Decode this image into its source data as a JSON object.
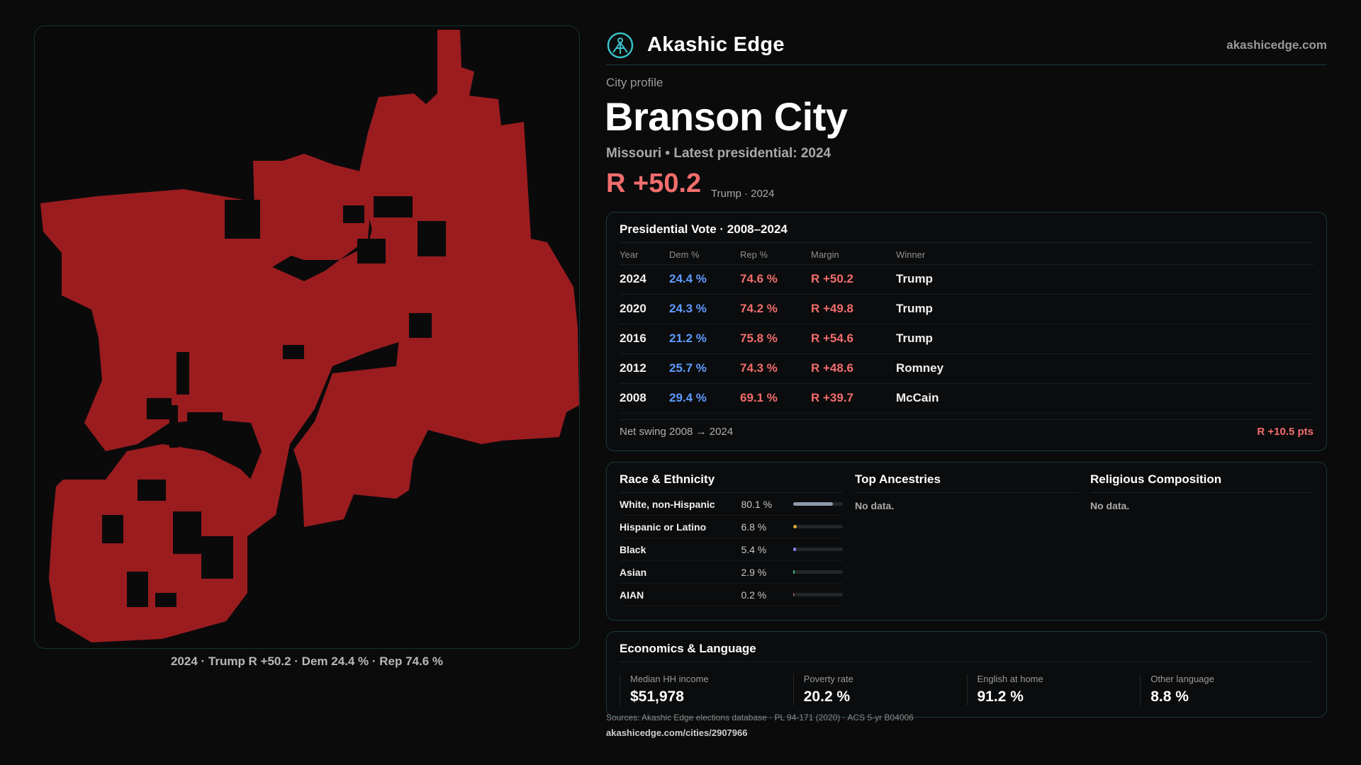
{
  "brand": {
    "name": "Akashic Edge",
    "site": "akashicedge.com",
    "accent": "#39c0c8"
  },
  "profile": {
    "eyebrow": "City profile",
    "city": "Branson City",
    "subline": "Missouri • Latest presidential: 2024",
    "margin": "R +50.2",
    "margin_note": "Trump · 2024"
  },
  "map": {
    "fill_color": "#9b1c1f",
    "caption": "2024 · Trump R +50.2 · Dem 24.4 % · Rep 74.6 %"
  },
  "vote": {
    "title": "Presidential Vote · 2008–2024",
    "headers": {
      "year": "Year",
      "dem": "Dem %",
      "rep": "Rep %",
      "margin": "Margin",
      "winner": "Winner"
    },
    "rows": [
      {
        "year": "2024",
        "dem": "24.4 %",
        "rep": "74.6 %",
        "margin": "R +50.2",
        "winner": "Trump"
      },
      {
        "year": "2020",
        "dem": "24.3 %",
        "rep": "74.2 %",
        "margin": "R +49.8",
        "winner": "Trump"
      },
      {
        "year": "2016",
        "dem": "21.2 %",
        "rep": "75.8 %",
        "margin": "R +54.6",
        "winner": "Trump"
      },
      {
        "year": "2012",
        "dem": "25.7 %",
        "rep": "74.3 %",
        "margin": "R +48.6",
        "winner": "Romney"
      },
      {
        "year": "2008",
        "dem": "29.4 %",
        "rep": "69.1 %",
        "margin": "R +39.7",
        "winner": "McCain"
      }
    ],
    "net_swing_label": "Net swing 2008 → 2024",
    "net_swing_value": "R +10.5 pts",
    "colors": {
      "dem": "#5e9bff",
      "rep": "#f26d6d"
    }
  },
  "race": {
    "title": "Race & Ethnicity",
    "rows": [
      {
        "label": "White, non-Hispanic",
        "pct": "80.1 %",
        "value": 80.1,
        "color": "#8d9aab"
      },
      {
        "label": "Hispanic or Latino",
        "pct": "6.8 %",
        "value": 6.8,
        "color": "#d9a335"
      },
      {
        "label": "Black",
        "pct": "5.4 %",
        "value": 5.4,
        "color": "#8b7cf0"
      },
      {
        "label": "Asian",
        "pct": "2.9 %",
        "value": 2.9,
        "color": "#3fbf8f"
      },
      {
        "label": "AIAN",
        "pct": "0.2 %",
        "value": 0.2,
        "color": "#c06060"
      }
    ]
  },
  "ancestries": {
    "title": "Top Ancestries",
    "empty": "No data."
  },
  "religion": {
    "title": "Religious Composition",
    "empty": "No data."
  },
  "economics": {
    "title": "Economics & Language",
    "stats": [
      {
        "label": "Median HH income",
        "value": "$51,978"
      },
      {
        "label": "Poverty rate",
        "value": "20.2 %"
      },
      {
        "label": "English at home",
        "value": "91.2 %"
      },
      {
        "label": "Other language",
        "value": "8.8 %"
      }
    ]
  },
  "footer": {
    "sources": "Sources: Akashic Edge elections database · PL 94-171 (2020) · ACS 5-yr B04006",
    "url": "akashicedge.com/cities/2907966"
  }
}
